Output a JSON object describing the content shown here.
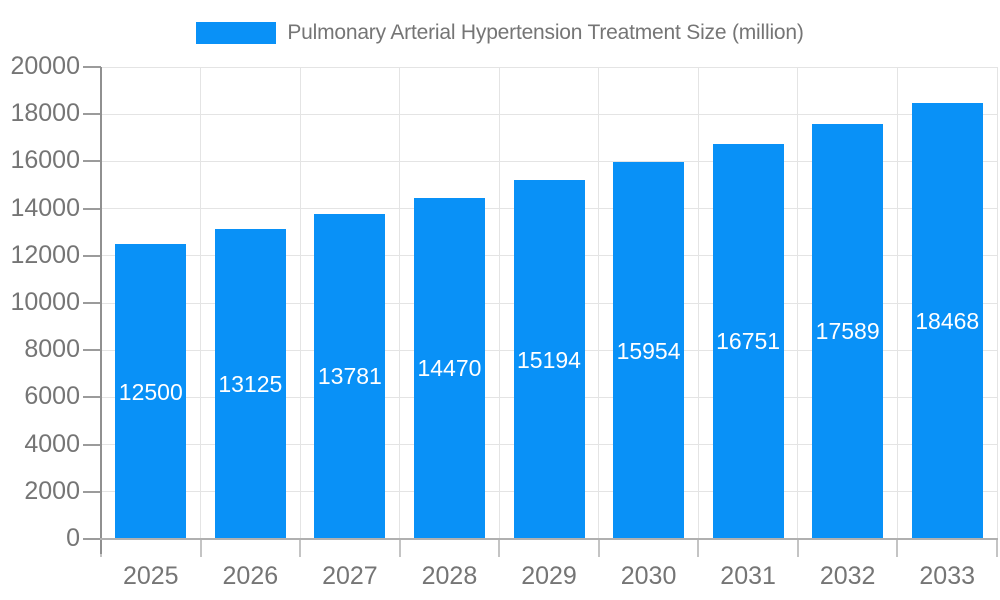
{
  "chart_data": {
    "type": "bar",
    "title": "Pulmonary Arterial Hypertension Treatment Size (million)",
    "categories": [
      "2025",
      "2026",
      "2027",
      "2028",
      "2029",
      "2030",
      "2031",
      "2032",
      "2033"
    ],
    "values": [
      12500,
      13125,
      13781,
      14470,
      15194,
      15954,
      16751,
      17589,
      18468
    ],
    "series": [
      {
        "name": "Pulmonary Arterial Hypertension Treatment Size (million)",
        "values": [
          12500,
          13125,
          13781,
          14470,
          15194,
          15954,
          16751,
          17589,
          18468
        ]
      }
    ],
    "xlabel": "",
    "ylabel": "",
    "ylim": [
      0,
      20000
    ],
    "ytick_step": 2000,
    "ytick_labels": [
      "0",
      "2000",
      "4000",
      "6000",
      "8000",
      "10000",
      "12000",
      "14000",
      "16000",
      "18000",
      "20000"
    ],
    "grid": true,
    "legend_position": "top",
    "value_labels_shown": true,
    "colors": {
      "bar": "#0991f7",
      "value_label": "#ffffff",
      "axis_label": "#757575",
      "legend_text": "#757575",
      "gridline": "#e4e4e4",
      "y_axis_line": "#909090",
      "x_axis_line": "#b0b0b0",
      "y_tick": "#9b9b9b",
      "x_tick": "#c4c4c4",
      "background": "#ffffff"
    }
  }
}
